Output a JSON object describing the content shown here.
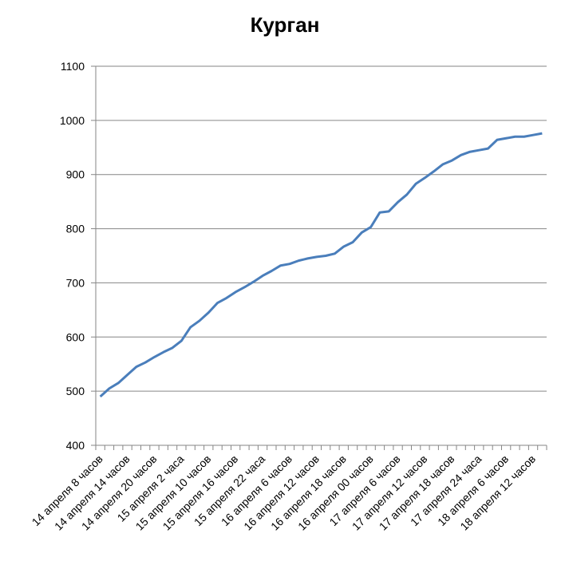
{
  "chart_data": {
    "type": "line",
    "title": "Курган",
    "categories": [
      "14 апреля 8 часов",
      null,
      null,
      "14 апреля 14 часов",
      null,
      null,
      "14 апреля 20 часов",
      null,
      null,
      "15 апреля 2 часа",
      null,
      null,
      "15 апреля 10 часов",
      null,
      null,
      "15 апреля 16 часов",
      null,
      null,
      "15 апреля 22 часа",
      null,
      null,
      "16 апреля 6 часов",
      null,
      null,
      "16 апреля 12 часов",
      null,
      null,
      "16 апреля 18 часов",
      null,
      null,
      "16 апреля 00 часов",
      null,
      null,
      "17 апреля 6 часов",
      null,
      null,
      "17 апреля 12 часов",
      null,
      null,
      "17 апреля 18 часов",
      null,
      null,
      "17 апреля 24 часа",
      null,
      null,
      "18 апреля 6 часов",
      null,
      null,
      "18 апреля 12 часов",
      null
    ],
    "values": [
      490,
      505,
      515,
      530,
      545,
      553,
      563,
      572,
      580,
      593,
      618,
      630,
      645,
      663,
      672,
      683,
      692,
      702,
      713,
      722,
      732,
      735,
      741,
      745,
      748,
      750,
      754,
      767,
      775,
      793,
      803,
      830,
      832,
      849,
      863,
      883,
      894,
      906,
      919,
      926,
      936,
      942,
      945,
      948,
      964,
      967,
      970,
      970,
      973,
      976
    ],
    "color": "#4a7ebb",
    "ylim": [
      400,
      1100
    ],
    "yticks": [
      400,
      500,
      600,
      700,
      800,
      900,
      1000,
      1100
    ],
    "grid": true
  }
}
